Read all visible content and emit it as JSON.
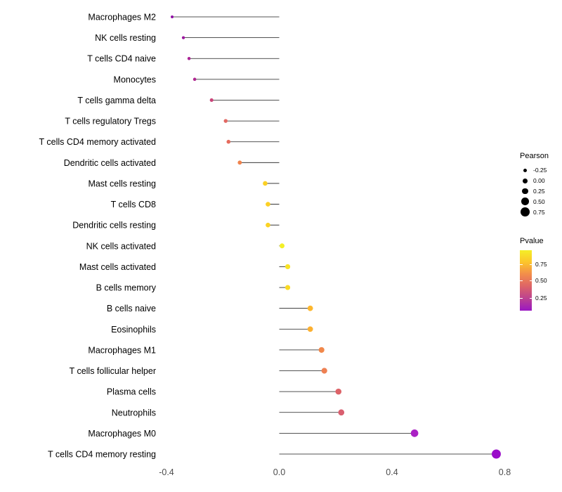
{
  "figure": {
    "background": "#ffffff",
    "stem_color": "#1a1a1a"
  },
  "chart_data": {
    "type": "scatter",
    "subtype": "lollipop",
    "title": "",
    "xlabel": "",
    "ylabel": "",
    "xlim": [
      -0.43,
      0.83
    ],
    "grid": false,
    "legend_position": "right",
    "x_ticks": [
      {
        "value": -0.4,
        "label": "-0.4"
      },
      {
        "value": 0.0,
        "label": "0.0"
      },
      {
        "value": 0.4,
        "label": "0.4"
      },
      {
        "value": 0.8,
        "label": "0.8"
      }
    ],
    "points": [
      {
        "label": "Macrophages M2",
        "pearson": -0.38,
        "color": "#8f0da4"
      },
      {
        "label": "NK cells resting",
        "pearson": -0.34,
        "color": "#9c179e"
      },
      {
        "label": "T cells CD4 naive",
        "pearson": -0.32,
        "color": "#aa2395"
      },
      {
        "label": "Monocytes",
        "pearson": -0.3,
        "color": "#b02991"
      },
      {
        "label": "T cells gamma delta",
        "pearson": -0.24,
        "color": "#ca457a"
      },
      {
        "label": "T cells regulatory Tregs",
        "pearson": -0.19,
        "color": "#e26863"
      },
      {
        "label": "T cells CD4 memory activated",
        "pearson": -0.18,
        "color": "#e56b5d"
      },
      {
        "label": "Dendritic cells activated",
        "pearson": -0.14,
        "color": "#f0834d"
      },
      {
        "label": "Mast cells resting",
        "pearson": -0.05,
        "color": "#fbd024"
      },
      {
        "label": "T cells CD8",
        "pearson": -0.04,
        "color": "#fcd025"
      },
      {
        "label": "Dendritic cells resting",
        "pearson": -0.04,
        "color": "#fbd324"
      },
      {
        "label": "NK cells activated",
        "pearson": 0.01,
        "color": "#f3ef27"
      },
      {
        "label": "Mast cells activated",
        "pearson": 0.03,
        "color": "#f8e325"
      },
      {
        "label": "B cells memory",
        "pearson": 0.03,
        "color": "#fada24"
      },
      {
        "label": "B cells naive",
        "pearson": 0.11,
        "color": "#fdb72e"
      },
      {
        "label": "Eosinophils",
        "pearson": 0.11,
        "color": "#fcb030"
      },
      {
        "label": "Macrophages M1",
        "pearson": 0.15,
        "color": "#f1884a"
      },
      {
        "label": "T cells follicular helper",
        "pearson": 0.16,
        "color": "#ee8052"
      },
      {
        "label": "Plasma cells",
        "pearson": 0.21,
        "color": "#dd6368"
      },
      {
        "label": "Neutrophils",
        "pearson": 0.22,
        "color": "#d95f6f"
      },
      {
        "label": "Macrophages M0",
        "pearson": 0.48,
        "color": "#aa21c4"
      },
      {
        "label": "T cells CD4 memory resting",
        "pearson": 0.77,
        "color": "#9a0dc9"
      }
    ],
    "size_legend": {
      "title": "Pearson",
      "values": [
        "-0.25",
        "0.00",
        "0.25",
        "0.50",
        "0.75"
      ]
    },
    "color_legend": {
      "title": "Pvalue",
      "tick_labels": [
        "0.75",
        "0.50",
        "0.25"
      ],
      "tick_positions": [
        0.235,
        0.505,
        0.79
      ],
      "gradient_colors": [
        "#f4ee27",
        "#fcc42b",
        "#f28c4b",
        "#dd6368",
        "#bb4191",
        "#9a17c3"
      ]
    }
  }
}
